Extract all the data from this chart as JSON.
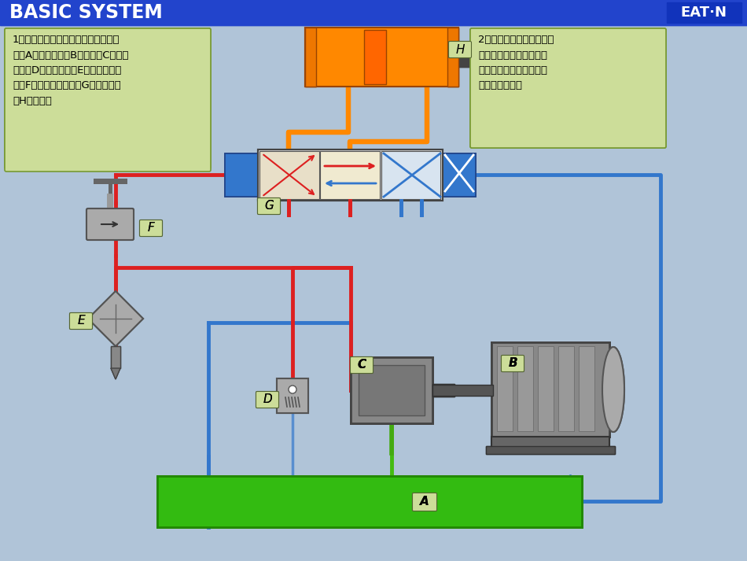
{
  "title": "BASIC SYSTEM",
  "title_bg": "#2244CC",
  "title_color": "white",
  "bg_color": "#B0C4D8",
  "eaton_bg": "#1133BB",
  "text1_bg": "#CCDD99",
  "text1": "1）一般认为一个简单的液压系统由油\n箱（A）、电动机（B）、泵（C）、溢\n流阀（D）、过滤器（E）、流量控制\n阀（F）、方向控制阀（G）、和油缸\n（H）组成。",
  "text2_bg": "#CCDD99",
  "text2": "2）油缸的运动是由流量控\n制阀（确定运动的速度）\n和方向控制阀（油缸运动\n的方向）控制。",
  "label_bg": "#CCDD99",
  "red_color": "#DD2020",
  "blue_color": "#3377CC",
  "orange_color": "#FF8800",
  "green_tank": "#33BB11"
}
